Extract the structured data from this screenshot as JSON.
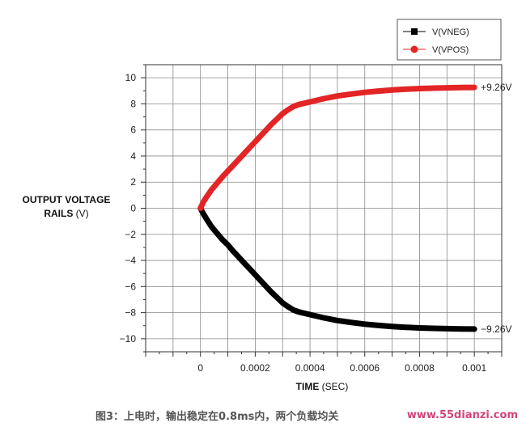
{
  "chart_data": {
    "type": "line",
    "title": "",
    "ylabel_line1": "OUTPUT VOLTAGE",
    "ylabel_line2_bold": "RAILS",
    "ylabel_line2_unit": " (V)",
    "xlabel_bold": "TIME",
    "xlabel_unit": " (SEC)",
    "xlim": [
      -0.0002,
      0.0011
    ],
    "ylim": [
      -11,
      11
    ],
    "x_ticks": [
      0,
      0.0002,
      0.0004,
      0.0006,
      0.0008,
      0.001
    ],
    "x_tick_labels": [
      "0",
      "0.0002",
      "0.0004",
      "0.0006",
      "0.0008",
      "0.001"
    ],
    "y_ticks": [
      10,
      8,
      6,
      4,
      2,
      0,
      -2,
      -4,
      -6,
      -8,
      -10
    ],
    "y_tick_labels": [
      "10",
      "8",
      "6",
      "4",
      "2",
      "0",
      "−2",
      "−4",
      "−6",
      "−8",
      "−10"
    ],
    "grid": true,
    "legend_position": "top-right",
    "series": [
      {
        "name": "V(VNEG)",
        "color": "#000000",
        "marker": "square",
        "end_label": "−9.26V",
        "x": [
          0,
          1e-05,
          2e-05,
          4e-05,
          6e-05,
          8e-05,
          0.0001,
          0.00012,
          0.00014,
          0.00016,
          0.00018,
          0.0002,
          0.00022,
          0.00024,
          0.00026,
          0.00028,
          0.0003,
          0.00032,
          0.00034,
          0.00036,
          0.00038,
          0.0004,
          0.00045,
          0.0005,
          0.00055,
          0.0006,
          0.00065,
          0.0007,
          0.00075,
          0.0008,
          0.00085,
          0.0009,
          0.00095,
          0.001
        ],
        "y": [
          0,
          -0.4,
          -0.75,
          -1.4,
          -1.9,
          -2.4,
          -2.8,
          -3.3,
          -3.75,
          -4.2,
          -4.65,
          -5.1,
          -5.55,
          -6.0,
          -6.45,
          -6.85,
          -7.25,
          -7.55,
          -7.8,
          -7.95,
          -8.05,
          -8.15,
          -8.4,
          -8.6,
          -8.75,
          -8.88,
          -8.98,
          -9.06,
          -9.12,
          -9.17,
          -9.2,
          -9.23,
          -9.25,
          -9.26
        ]
      },
      {
        "name": "V(VPOS)",
        "color": "#e32526",
        "marker": "circle",
        "end_label": "+9.26V",
        "x": [
          0,
          1e-05,
          2e-05,
          4e-05,
          6e-05,
          8e-05,
          0.0001,
          0.00012,
          0.00014,
          0.00016,
          0.00018,
          0.0002,
          0.00022,
          0.00024,
          0.00026,
          0.00028,
          0.0003,
          0.00032,
          0.00034,
          0.00036,
          0.00038,
          0.0004,
          0.00045,
          0.0005,
          0.00055,
          0.0006,
          0.00065,
          0.0007,
          0.00075,
          0.0008,
          0.00085,
          0.0009,
          0.00095,
          0.001
        ],
        "y": [
          0,
          0.45,
          0.8,
          1.4,
          1.9,
          2.4,
          2.85,
          3.3,
          3.75,
          4.2,
          4.65,
          5.1,
          5.55,
          6.0,
          6.45,
          6.85,
          7.25,
          7.55,
          7.8,
          7.95,
          8.05,
          8.15,
          8.4,
          8.6,
          8.75,
          8.88,
          8.98,
          9.06,
          9.12,
          9.17,
          9.2,
          9.23,
          9.25,
          9.26
        ]
      }
    ]
  },
  "caption": "图3：上电时，输出稳定在0.8ms内，两个负载均关",
  "watermark": "www.55dianzi.com"
}
